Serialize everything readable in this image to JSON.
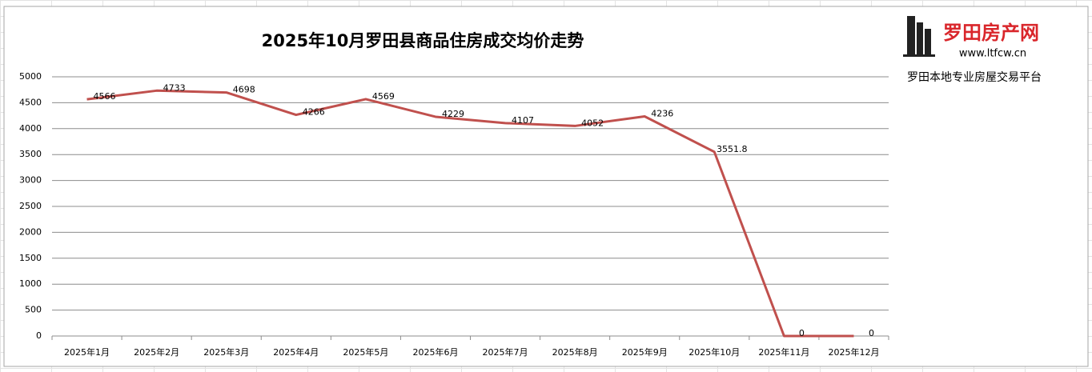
{
  "chart_data": {
    "type": "line",
    "title": "2025年10月罗田县商品住房成交均价走势",
    "annotations": [
      "罗田房产网",
      "www.ltfcw.cn",
      "罗田本地专业房屋交易平台"
    ],
    "categories": [
      "2025年1月",
      "2025年2月",
      "2025年3月",
      "2025年4月",
      "2025年5月",
      "2025年6月",
      "2025年7月",
      "2025年8月",
      "2025年9月",
      "2025年10月",
      "2025年11月",
      "2025年12月"
    ],
    "series": [
      {
        "color": "#c0504d",
        "values": [
          4566,
          4733,
          4698,
          4266,
          4569,
          4229,
          4107,
          4052,
          4236,
          3551.8,
          0,
          0
        ]
      }
    ],
    "ylim": [
      0,
      5000
    ],
    "yticks": [
      0,
      500,
      1000,
      1500,
      2000,
      2500,
      3000,
      3500,
      4000,
      4500,
      5000
    ],
    "grid": true
  }
}
